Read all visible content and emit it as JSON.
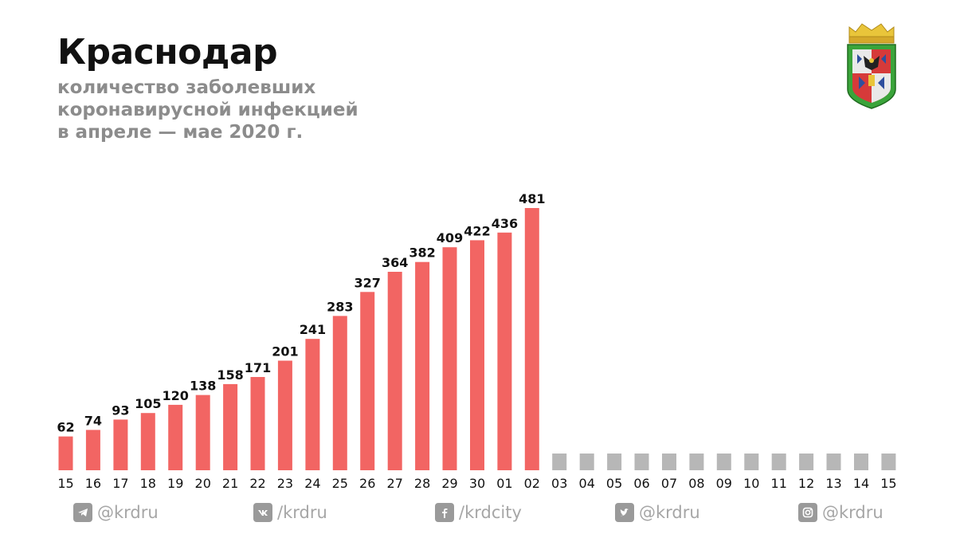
{
  "header": {
    "title": "Краснодар",
    "subtitle_lines": [
      "количество заболевших",
      "коронавирусной инфекцией",
      "в апреле — мае 2020 г."
    ]
  },
  "colors": {
    "bar": "#f26563",
    "placeholder": "#b7b7b7",
    "value_label": "#111111",
    "tick_label": "#111111"
  },
  "chart_data": {
    "type": "bar",
    "title": "Краснодар",
    "subtitle": "количество заболевших коронавирусной инфекцией в апреле — мае 2020 г.",
    "xlabel": "",
    "ylabel": "",
    "ylim": [
      0,
      500
    ],
    "grid": false,
    "categories": [
      "15",
      "16",
      "17",
      "18",
      "19",
      "20",
      "21",
      "22",
      "23",
      "24",
      "25",
      "26",
      "27",
      "28",
      "29",
      "30",
      "01",
      "02",
      "03",
      "04",
      "05",
      "06",
      "07",
      "08",
      "09",
      "10",
      "11",
      "12",
      "13",
      "14",
      "15"
    ],
    "values": [
      62,
      74,
      93,
      105,
      120,
      138,
      158,
      171,
      201,
      241,
      283,
      327,
      364,
      382,
      409,
      422,
      436,
      481,
      null,
      null,
      null,
      null,
      null,
      null,
      null,
      null,
      null,
      null,
      null,
      null,
      null
    ]
  },
  "footer": {
    "socials": [
      {
        "icon": "telegram-icon",
        "handle": "@krdru"
      },
      {
        "icon": "vk-icon",
        "handle": "/krdru"
      },
      {
        "icon": "facebook-icon",
        "handle": "/krdcity"
      },
      {
        "icon": "twitter-icon",
        "handle": "@krdru"
      },
      {
        "icon": "instagram-icon",
        "handle": "@krdru"
      }
    ]
  }
}
